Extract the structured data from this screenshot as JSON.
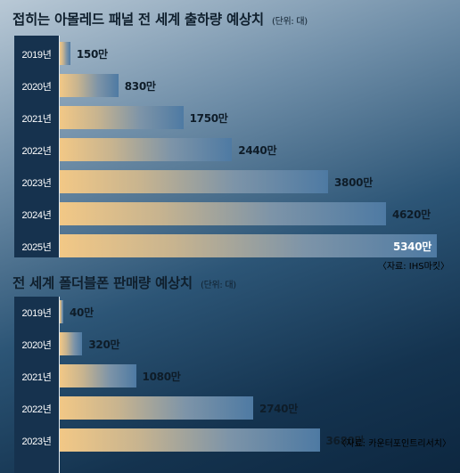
{
  "chart_data": [
    {
      "type": "bar",
      "orientation": "horizontal",
      "title": "접히는 아몰레드 패널 전 세계 출하량 예상치",
      "unit_note": "(단위: 대)",
      "categories": [
        "2019년",
        "2020년",
        "2021년",
        "2022년",
        "2023년",
        "2024년",
        "2025년"
      ],
      "values": [
        150,
        830,
        1750,
        2440,
        3800,
        4620,
        5340
      ],
      "value_labels": [
        "150만",
        "830만",
        "1750만",
        "2440만",
        "3800만",
        "4620만",
        "5340만"
      ],
      "source": "〈자료: IHS마킷〉",
      "colors": {
        "bar_start": "#f2c886",
        "bar_end": "#4e7aa3",
        "year_column": "#16324e"
      }
    },
    {
      "type": "bar",
      "orientation": "horizontal",
      "title": "전 세계 폴더블폰 판매량 예상치",
      "unit_note": "(단위: 대)",
      "categories": [
        "2019년",
        "2020년",
        "2021년",
        "2022년",
        "2023년"
      ],
      "values": [
        40,
        320,
        1080,
        2740,
        3680
      ],
      "value_labels": [
        "40만",
        "320만",
        "1080만",
        "2740만",
        "3680만"
      ],
      "source": "〈자료: 카운터포인트리서치〉",
      "colors": {
        "bar_start": "#f2c886",
        "bar_end": "#4e7aa3",
        "year_column": "#16324e"
      }
    }
  ]
}
